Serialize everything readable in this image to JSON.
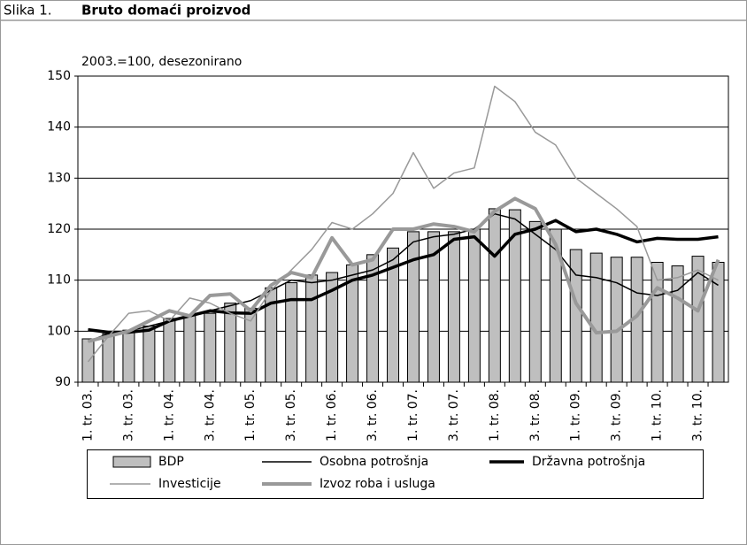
{
  "chart_data": {
    "type": "bar_line",
    "figure_label": "Slika 1.",
    "title": "Bruto domaći proizvod",
    "subtitle": "2003.=100, desezonirano",
    "categories": [
      "1. tr. 03.",
      null,
      "3. tr. 03.",
      null,
      "1. tr. 04.",
      null,
      "3. tr. 04.",
      null,
      "1. tr. 05.",
      null,
      "3. tr. 05.",
      null,
      "1. tr. 06.",
      null,
      "3. tr. 06.",
      null,
      "1. tr. 07.",
      null,
      "3. tr. 07.",
      null,
      "1. tr. 08.",
      null,
      "3. tr. 08.",
      null,
      "1. tr. 09.",
      null,
      "3. tr. 09.",
      null,
      "1. tr. 10.",
      null,
      "3. tr. 10.",
      null
    ],
    "series": [
      {
        "name": "BDP",
        "kind": "bar",
        "color": "#bfbfbf",
        "values": [
          98.5,
          99.5,
          100.2,
          101,
          102.5,
          103,
          103.5,
          105.5,
          104.5,
          108.5,
          109.5,
          111,
          111.5,
          113,
          115,
          116.3,
          119.5,
          119.5,
          119.5,
          120,
          124,
          123.8,
          121.5,
          120,
          116,
          115.3,
          114.5,
          114.5,
          113.5,
          112.8,
          114.7,
          113.5
        ]
      },
      {
        "name": "Osobna potrošnja",
        "kind": "line",
        "color": "#000000",
        "values": [
          98,
          99.5,
          100,
          101,
          102,
          103,
          104,
          105,
          106,
          108,
          110,
          109.5,
          110,
          111,
          112,
          114,
          117.5,
          118.5,
          119,
          120,
          123,
          122,
          119,
          116,
          111,
          110.5,
          109.5,
          107.5,
          107,
          108,
          111.5,
          109
        ]
      },
      {
        "name": "Državna potrošnja",
        "kind": "line",
        "color": "#000000",
        "values": [
          100.3,
          99.8,
          99.8,
          100.2,
          102,
          103,
          104,
          103.6,
          103.5,
          105.5,
          106.2,
          106.2,
          108,
          110,
          111,
          112.5,
          114,
          115,
          118,
          118.5,
          114.7,
          119,
          120,
          121.7,
          119.5,
          120,
          119,
          117.5,
          118.2,
          118,
          118,
          118.5
        ]
      },
      {
        "name": "Investicije",
        "kind": "line",
        "color": "#999999",
        "values": [
          94,
          99,
          103.5,
          104,
          102,
          106.5,
          105.5,
          103.5,
          102,
          108,
          112,
          116,
          121.3,
          120,
          123,
          127,
          135,
          128,
          131,
          132,
          148,
          145,
          139,
          136.5,
          130,
          127,
          124,
          120.5,
          110,
          110.5,
          112,
          110
        ]
      },
      {
        "name": "Izvoz roba i usluga",
        "kind": "line",
        "color": "#999999",
        "values": [
          98,
          99,
          100,
          102,
          104,
          103,
          107,
          107.3,
          104,
          109,
          111.5,
          110.5,
          118.3,
          113,
          114,
          120,
          120,
          121,
          120.5,
          119.5,
          123.5,
          126,
          124,
          117,
          105.5,
          99.7,
          100,
          103,
          108.5,
          106.5,
          104,
          114
        ]
      }
    ],
    "ylim": [
      90,
      150
    ],
    "yticks": [
      90,
      100,
      110,
      120,
      130,
      140,
      150
    ],
    "grid": true,
    "legend": "bottom"
  }
}
